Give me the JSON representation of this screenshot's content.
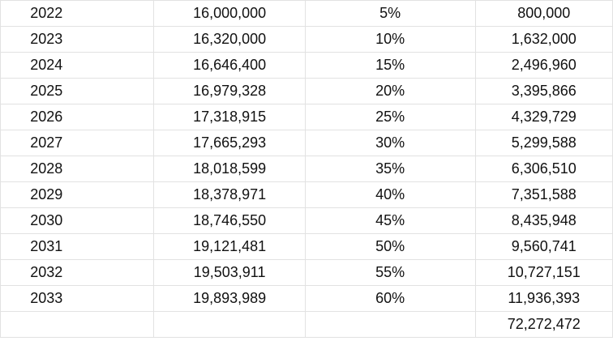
{
  "sheet": {
    "rows": [
      {
        "year": "2022",
        "value": "16,000,000",
        "rate": "5%",
        "result": "800,000"
      },
      {
        "year": "2023",
        "value": "16,320,000",
        "rate": "10%",
        "result": "1,632,000"
      },
      {
        "year": "2024",
        "value": "16,646,400",
        "rate": "15%",
        "result": "2,496,960"
      },
      {
        "year": "2025",
        "value": "16,979,328",
        "rate": "20%",
        "result": "3,395,866"
      },
      {
        "year": "2026",
        "value": "17,318,915",
        "rate": "25%",
        "result": "4,329,729"
      },
      {
        "year": "2027",
        "value": "17,665,293",
        "rate": "30%",
        "result": "5,299,588"
      },
      {
        "year": "2028",
        "value": "18,018,599",
        "rate": "35%",
        "result": "6,306,510"
      },
      {
        "year": "2029",
        "value": "18,378,971",
        "rate": "40%",
        "result": "7,351,588"
      },
      {
        "year": "2030",
        "value": "18,746,550",
        "rate": "45%",
        "result": "8,435,948"
      },
      {
        "year": "2031",
        "value": "19,121,481",
        "rate": "50%",
        "result": "9,560,741"
      },
      {
        "year": "2032",
        "value": "19,503,911",
        "rate": "55%",
        "result": "10,727,151"
      },
      {
        "year": "2033",
        "value": "19,893,989",
        "rate": "60%",
        "result": "11,936,393"
      }
    ],
    "total": {
      "year": "",
      "value": "",
      "rate": "",
      "result": "72,272,472"
    }
  },
  "colors": {
    "gridline": "#e2e2e2",
    "text": "#111111",
    "background": "#ffffff"
  }
}
